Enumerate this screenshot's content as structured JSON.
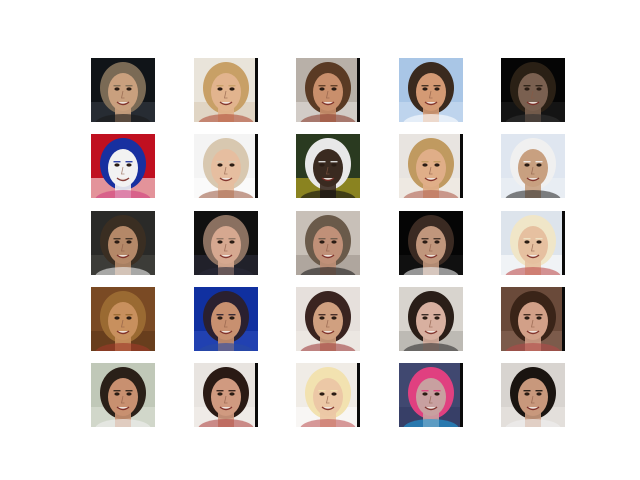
{
  "figure": {
    "rows": 5,
    "cols": 5,
    "tiles": [
      {
        "bg": "#101418",
        "skin": "#c9a07e",
        "hair": "#7a6a55",
        "accent": "#1a1a1a",
        "shade": "#3a3f4a"
      },
      {
        "bg": "#e9e4da",
        "skin": "#e2b48e",
        "hair": "#c8a066",
        "accent": "#b0503a",
        "shade": "#d8c9b2"
      },
      {
        "bg": "#b8b0a8",
        "skin": "#c98f6c",
        "hair": "#5a3a24",
        "accent": "#8a4030",
        "shade": "#e8e4e0"
      },
      {
        "bg": "#a9c6e6",
        "skin": "#d49a74",
        "hair": "#3a2a1e",
        "accent": "#ffffff",
        "shade": "#cfe0f2"
      },
      {
        "bg": "#050505",
        "skin": "#7a6050",
        "hair": "#2a2015",
        "accent": "#303030",
        "shade": "#202020"
      },
      {
        "bg": "#c01020",
        "skin": "#f2f2f2",
        "hair": "#1830a0",
        "accent": "#d04080",
        "shade": "#ffffff"
      },
      {
        "bg": "#f4f4f4",
        "skin": "#e6bea0",
        "hair": "#d8c8b0",
        "accent": "#a0604a",
        "shade": "#ffffff"
      },
      {
        "bg": "#2a3a20",
        "skin": "#3a2a20",
        "hair": "#e8e8e8",
        "accent": "#101010",
        "shade": "#d8c020"
      },
      {
        "bg": "#e8e4e0",
        "skin": "#e0ae88",
        "hair": "#c09a60",
        "accent": "#b06050",
        "shade": "#f2ece4"
      },
      {
        "bg": "#dfe6f0",
        "skin": "#c8a080",
        "hair": "#f0f0f0",
        "accent": "#303030",
        "shade": "#eef2f6"
      },
      {
        "bg": "#2a2a28",
        "skin": "#b48868",
        "hair": "#3a2e22",
        "accent": "#f0f0f0",
        "shade": "#4a4a46"
      },
      {
        "bg": "#101010",
        "skin": "#d6a890",
        "hair": "#8a7060",
        "accent": "#2a2a3a",
        "shade": "#303040"
      },
      {
        "bg": "#c8c0b8",
        "skin": "#c09078",
        "hair": "#6a5a4a",
        "accent": "#202020",
        "shade": "#9a9088"
      },
      {
        "bg": "#050505",
        "skin": "#c0967c",
        "hair": "#3a2a22",
        "accent": "#f0f0f0",
        "shade": "#1a1a1a"
      },
      {
        "bg": "#dde4ec",
        "skin": "#e6c0a0",
        "hair": "#f0e6c8",
        "accent": "#c05050",
        "shade": "#ffffff"
      },
      {
        "bg": "#7a4a24",
        "skin": "#c8905e",
        "hair": "#9a6a32",
        "accent": "#a03a2a",
        "shade": "#5a3418"
      },
      {
        "bg": "#1030a0",
        "skin": "#c89070",
        "hair": "#2a2030",
        "accent": "#2a4aa0",
        "shade": "#3050c0"
      },
      {
        "bg": "#e6e0dc",
        "skin": "#d0a080",
        "hair": "#3a2420",
        "accent": "#a04040",
        "shade": "#f0ece8"
      },
      {
        "bg": "#d8d4ce",
        "skin": "#d8b0a0",
        "hair": "#2a1e18",
        "accent": "#303030",
        "shade": "#a8a49e"
      },
      {
        "bg": "#6a4a3a",
        "skin": "#d2a088",
        "hair": "#3a2418",
        "accent": "#b04a48",
        "shade": "#8a6a5a"
      },
      {
        "bg": "#c0c8b8",
        "skin": "#c89070",
        "hair": "#2a2018",
        "accent": "#f0f0f0",
        "shade": "#dfe4d8"
      },
      {
        "bg": "#e8e4e0",
        "skin": "#d09a80",
        "hair": "#2a1a14",
        "accent": "#b04a48",
        "shade": "#f4f0ec"
      },
      {
        "bg": "#f0ece6",
        "skin": "#ecc8a6",
        "hair": "#f2e2b0",
        "accent": "#c05a5a",
        "shade": "#ffffff"
      },
      {
        "bg": "#404870",
        "skin": "#c8a0a0",
        "hair": "#e04080",
        "accent": "#20a0e0",
        "shade": "#303860"
      },
      {
        "bg": "#d8d4d0",
        "skin": "#c8987c",
        "hair": "#1a1410",
        "accent": "#f0f0f0",
        "shade": "#ece8e4"
      }
    ]
  }
}
